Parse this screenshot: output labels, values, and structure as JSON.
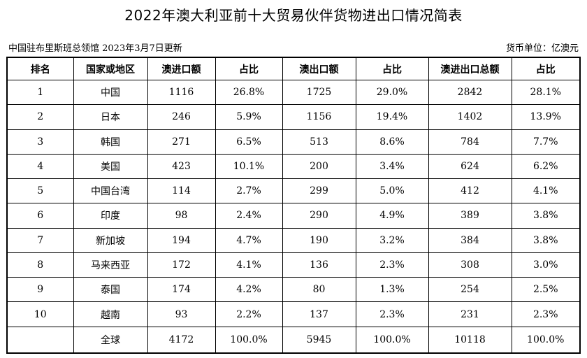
{
  "title": "2022年澳大利亚前十大贸易伙伴货物进出口情况简表",
  "source": "中国驻布里斯班总领馆  2023年3月7日更新",
  "unit": "货币单位：亿澳元",
  "headers": [
    "排名",
    "国家或地区",
    "澳进口额",
    "占比",
    "澳出口额",
    "占比",
    "澳进出口总额",
    "占比"
  ],
  "rows": [
    [
      "1",
      "中国",
      "1116",
      "26.8%",
      "1725",
      "29.0%",
      "2842",
      "28.1%"
    ],
    [
      "2",
      "日本",
      "246",
      "5.9%",
      "1156",
      "19.4%",
      "1402",
      "13.9%"
    ],
    [
      "3",
      "韩国",
      "271",
      "6.5%",
      "513",
      "8.6%",
      "784",
      "7.7%"
    ],
    [
      "4",
      "美国",
      "423",
      "10.1%",
      "200",
      "3.4%",
      "624",
      "6.2%"
    ],
    [
      "5",
      "中国台湾",
      "114",
      "2.7%",
      "299",
      "5.0%",
      "412",
      "4.1%"
    ],
    [
      "6",
      "印度",
      "98",
      "2.4%",
      "290",
      "4.9%",
      "389",
      "3.8%"
    ],
    [
      "7",
      "新加坡",
      "194",
      "4.7%",
      "190",
      "3.2%",
      "384",
      "3.8%"
    ],
    [
      "8",
      "马来西亚",
      "172",
      "4.1%",
      "136",
      "2.3%",
      "308",
      "3.0%"
    ],
    [
      "9",
      "泰国",
      "174",
      "4.2%",
      "80",
      "1.3%",
      "254",
      "2.5%"
    ],
    [
      "10",
      "越南",
      "93",
      "2.2%",
      "137",
      "2.3%",
      "231",
      "2.3%"
    ]
  ],
  "total": [
    "",
    "全球",
    "4172",
    "100.0%",
    "5945",
    "100.0%",
    "10118",
    "100.0%"
  ]
}
